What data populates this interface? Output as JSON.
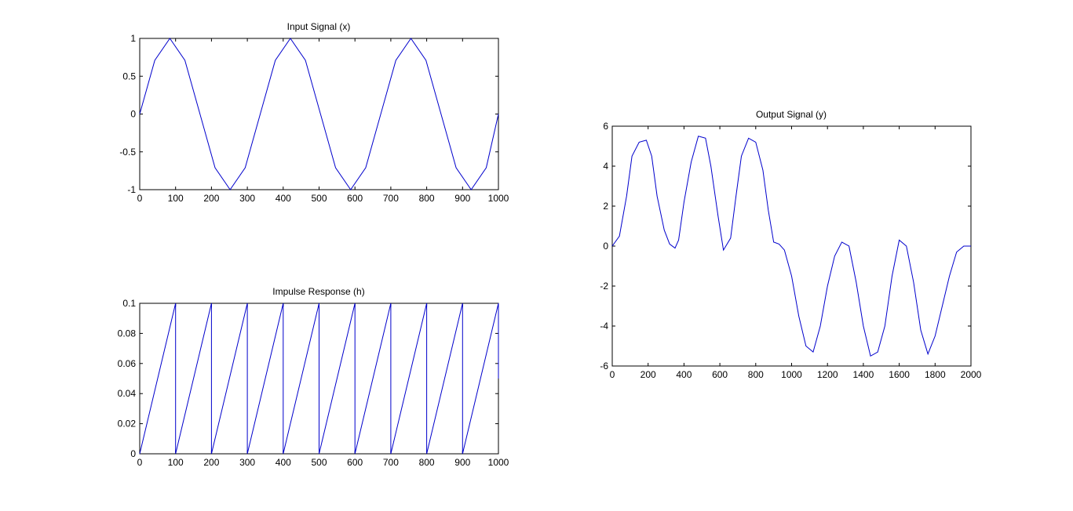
{
  "figure": {
    "background": "#ffffff"
  },
  "chart_data": [
    {
      "id": "input",
      "type": "line",
      "title": "Input Signal (x)",
      "xlabel": "",
      "ylabel": "",
      "xlim": [
        0,
        1000
      ],
      "ylim": [
        -1,
        1
      ],
      "xticks": [
        0,
        100,
        200,
        300,
        400,
        500,
        600,
        700,
        800,
        900,
        1000
      ],
      "yticks": [
        1,
        0.5,
        0,
        -0.5,
        -1
      ],
      "xtick_labels": [
        "0",
        "100",
        "200",
        "300",
        "400",
        "500",
        "600",
        "700",
        "800",
        "900",
        "1000"
      ],
      "ytick_labels": [
        "1",
        "0.5",
        "0",
        "-0.5",
        "-1"
      ],
      "grid": false,
      "series": [
        {
          "color": "#0000cc",
          "x": [
            0,
            42,
            84,
            126,
            168,
            210,
            252,
            294,
            336,
            378,
            420,
            462,
            504,
            546,
            588,
            630,
            672,
            714,
            756,
            798,
            840,
            882,
            924,
            966,
            1000
          ],
          "y": [
            0,
            0.71,
            1,
            0.71,
            0,
            -0.71,
            -1,
            -0.71,
            0,
            0.71,
            1,
            0.71,
            0,
            -0.71,
            -1,
            -0.71,
            0,
            0.71,
            1,
            0.71,
            0,
            -0.71,
            -1,
            -0.71,
            0
          ]
        }
      ]
    },
    {
      "id": "impulse",
      "type": "line",
      "title": "Impulse Response (h)",
      "xlabel": "",
      "ylabel": "",
      "xlim": [
        0,
        1000
      ],
      "ylim": [
        0,
        0.1
      ],
      "xticks": [
        0,
        100,
        200,
        300,
        400,
        500,
        600,
        700,
        800,
        900,
        1000
      ],
      "yticks": [
        0.1,
        0.08,
        0.06,
        0.04,
        0.02,
        0
      ],
      "xtick_labels": [
        "0",
        "100",
        "200",
        "300",
        "400",
        "500",
        "600",
        "700",
        "800",
        "900",
        "1000"
      ],
      "ytick_labels": [
        "0.1",
        "0.08",
        "0.06",
        "0.04",
        "0.02",
        "0"
      ],
      "grid": false,
      "series": [
        {
          "color": "#0000cc",
          "x": [
            0,
            100,
            100,
            200,
            200,
            300,
            300,
            400,
            400,
            500,
            500,
            600,
            600,
            700,
            700,
            800,
            800,
            900,
            900,
            1000,
            1000
          ],
          "y": [
            0,
            0.1,
            0,
            0.1,
            0,
            0.1,
            0,
            0.1,
            0,
            0.1,
            0,
            0.1,
            0,
            0.1,
            0,
            0.1,
            0,
            0.1,
            0,
            0.1,
            0.05
          ]
        }
      ]
    },
    {
      "id": "output",
      "type": "line",
      "title": "Output Signal (y)",
      "xlabel": "",
      "ylabel": "",
      "xlim": [
        0,
        2000
      ],
      "ylim": [
        -6,
        6
      ],
      "xticks": [
        0,
        200,
        400,
        600,
        800,
        1000,
        1200,
        1400,
        1600,
        1800,
        2000
      ],
      "yticks": [
        6,
        4,
        2,
        0,
        -2,
        -4,
        -6
      ],
      "xtick_labels": [
        "0",
        "200",
        "400",
        "600",
        "800",
        "1000",
        "1200",
        "1400",
        "1600",
        "1800",
        "2000"
      ],
      "ytick_labels": [
        "6",
        "4",
        "2",
        "0",
        "-2",
        "-4",
        "-6"
      ],
      "grid": false,
      "series": [
        {
          "color": "#0000cc",
          "x": [
            0,
            40,
            80,
            110,
            150,
            190,
            220,
            250,
            290,
            320,
            350,
            370,
            400,
            440,
            480,
            520,
            550,
            590,
            620,
            660,
            690,
            720,
            760,
            800,
            840,
            870,
            900,
            930,
            960,
            1000,
            1040,
            1080,
            1120,
            1160,
            1200,
            1240,
            1280,
            1320,
            1360,
            1400,
            1440,
            1480,
            1520,
            1560,
            1600,
            1640,
            1680,
            1720,
            1760,
            1800,
            1840,
            1880,
            1920,
            1960,
            2000
          ],
          "y": [
            0,
            0.5,
            2.5,
            4.5,
            5.2,
            5.3,
            4.5,
            2.5,
            0.8,
            0.1,
            -0.1,
            0.3,
            2.2,
            4.2,
            5.5,
            5.4,
            4.0,
            1.5,
            -0.2,
            0.4,
            2.5,
            4.5,
            5.4,
            5.2,
            3.8,
            1.8,
            0.2,
            0.1,
            -0.2,
            -1.5,
            -3.5,
            -5.0,
            -5.3,
            -4.0,
            -2.0,
            -0.5,
            0.2,
            0.0,
            -1.8,
            -4.0,
            -5.5,
            -5.3,
            -4.0,
            -1.5,
            0.3,
            0.0,
            -1.8,
            -4.2,
            -5.4,
            -4.5,
            -3.0,
            -1.5,
            -0.3,
            0.0,
            0.0
          ]
        }
      ]
    }
  ]
}
